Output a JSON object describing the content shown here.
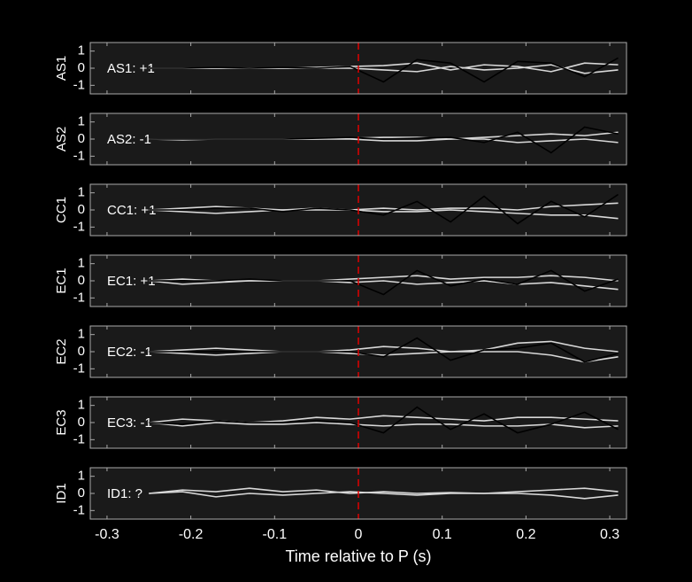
{
  "chart_data": [
    {
      "type": "line",
      "ylabel": "AS1",
      "annotation": "AS1: +1",
      "annotation_color": "#c00000",
      "vline": 0,
      "vline_color": "#e00000",
      "x": [
        -0.25,
        -0.21,
        -0.17,
        -0.13,
        -0.09,
        -0.05,
        -0.01,
        0.03,
        0.07,
        0.11,
        0.15,
        0.19,
        0.23,
        0.27,
        0.31
      ],
      "xlim": [
        -0.32,
        0.32
      ],
      "xticks": [
        -0.3,
        -0.2,
        -0.1,
        0,
        0.1,
        0.2,
        0.3
      ],
      "ylim": [
        -1.5,
        1.5
      ],
      "yticks": [
        -1,
        0,
        1
      ],
      "series": [
        {
          "color": "#d8d8d8",
          "values": [
            0,
            0,
            0,
            0,
            0,
            0.05,
            0.1,
            0.15,
            0.3,
            -0.1,
            0.2,
            0.1,
            -0.2,
            0.3,
            0.2
          ]
        },
        {
          "color": "#d8d8d8",
          "values": [
            0,
            0,
            0,
            0,
            0,
            0,
            0,
            -0.1,
            -0.2,
            0.1,
            -0.1,
            0,
            0.2,
            -0.3,
            -0.1
          ]
        },
        {
          "color": "#000000",
          "values": [
            0,
            0,
            0.05,
            0,
            0.05,
            0,
            0.1,
            -0.8,
            0.5,
            0.3,
            -0.8,
            0.4,
            0.3,
            -0.5,
            0.6
          ]
        }
      ]
    },
    {
      "type": "line",
      "ylabel": "AS2",
      "annotation": "AS2: -1",
      "annotation_color": "#1010b0",
      "vline": 0,
      "vline_color": "#e00000",
      "x": [
        -0.25,
        -0.21,
        -0.17,
        -0.13,
        -0.09,
        -0.05,
        -0.01,
        0.03,
        0.07,
        0.11,
        0.15,
        0.19,
        0.23,
        0.27,
        0.31
      ],
      "xlim": [
        -0.32,
        0.32
      ],
      "xticks": [
        -0.3,
        -0.2,
        -0.1,
        0,
        0.1,
        0.2,
        0.3
      ],
      "ylim": [
        -1.5,
        1.5
      ],
      "yticks": [
        -1,
        0,
        1
      ],
      "series": [
        {
          "color": "#d8d8d8",
          "values": [
            0,
            0,
            0,
            0,
            0,
            0,
            0.05,
            0.1,
            0.1,
            0,
            0.1,
            0.2,
            0.3,
            0.2,
            0.4
          ]
        },
        {
          "color": "#d8d8d8",
          "values": [
            0,
            -0.05,
            0,
            0,
            0,
            0,
            0,
            -0.1,
            -0.1,
            0,
            0,
            -0.2,
            -0.1,
            0,
            -0.2
          ]
        },
        {
          "color": "#000000",
          "values": [
            0,
            0,
            0,
            0,
            0,
            0.05,
            0.1,
            0,
            0.05,
            0.1,
            -0.2,
            0.4,
            -0.8,
            0.7,
            0.3
          ]
        }
      ]
    },
    {
      "type": "line",
      "ylabel": "CC1",
      "annotation": "CC1: +1",
      "annotation_color": "#c00000",
      "vline": 0,
      "vline_color": "#e00000",
      "x": [
        -0.25,
        -0.21,
        -0.17,
        -0.13,
        -0.09,
        -0.05,
        -0.01,
        0.03,
        0.07,
        0.11,
        0.15,
        0.19,
        0.23,
        0.27,
        0.31
      ],
      "xlim": [
        -0.32,
        0.32
      ],
      "xticks": [
        -0.3,
        -0.2,
        -0.1,
        0,
        0.1,
        0.2,
        0.3
      ],
      "ylim": [
        -1.5,
        1.5
      ],
      "yticks": [
        -1,
        0,
        1
      ],
      "series": [
        {
          "color": "#d8d8d8",
          "values": [
            0,
            0.1,
            0.2,
            0.1,
            0,
            0.1,
            0,
            0.1,
            0,
            0.1,
            0.1,
            0,
            0.2,
            0.3,
            0.4
          ]
        },
        {
          "color": "#d8d8d8",
          "values": [
            0,
            -0.1,
            -0.2,
            -0.1,
            0,
            0,
            0,
            -0.1,
            -0.1,
            0,
            -0.1,
            -0.2,
            -0.3,
            -0.3,
            -0.5
          ]
        },
        {
          "color": "#000000",
          "values": [
            0,
            0,
            0.1,
            0.1,
            -0.1,
            0.1,
            0,
            -0.3,
            0.5,
            -0.7,
            0.8,
            -0.8,
            0.5,
            -0.4,
            0.9
          ]
        }
      ]
    },
    {
      "type": "line",
      "ylabel": "EC1",
      "annotation": "EC1: +1",
      "annotation_color": "#c00000",
      "vline": 0,
      "vline_color": "#e00000",
      "x": [
        -0.25,
        -0.21,
        -0.17,
        -0.13,
        -0.09,
        -0.05,
        -0.01,
        0.03,
        0.07,
        0.11,
        0.15,
        0.19,
        0.23,
        0.27,
        0.31
      ],
      "xlim": [
        -0.32,
        0.32
      ],
      "xticks": [
        -0.3,
        -0.2,
        -0.1,
        0,
        0.1,
        0.2,
        0.3
      ],
      "ylim": [
        -1.5,
        1.5
      ],
      "yticks": [
        -1,
        0,
        1
      ],
      "series": [
        {
          "color": "#d8d8d8",
          "values": [
            0,
            0.1,
            0,
            0,
            0,
            0,
            0.1,
            0.2,
            0.3,
            0.1,
            0.2,
            0.2,
            0.3,
            0.2,
            0
          ]
        },
        {
          "color": "#d8d8d8",
          "values": [
            0,
            -0.2,
            -0.1,
            0,
            0,
            0,
            -0.1,
            0,
            -0.2,
            -0.1,
            0,
            -0.2,
            -0.1,
            -0.3,
            -0.5
          ]
        },
        {
          "color": "#000000",
          "values": [
            0,
            0,
            0,
            0.1,
            0,
            0,
            0,
            -0.8,
            0.6,
            -0.3,
            0.1,
            -0.2,
            0.6,
            -0.6,
            0.1
          ]
        }
      ]
    },
    {
      "type": "line",
      "ylabel": "EC2",
      "annotation": "EC2: -1",
      "annotation_color": "#1010b0",
      "vline": 0,
      "vline_color": "#e00000",
      "x": [
        -0.25,
        -0.21,
        -0.17,
        -0.13,
        -0.09,
        -0.05,
        -0.01,
        0.03,
        0.07,
        0.11,
        0.15,
        0.19,
        0.23,
        0.27,
        0.31
      ],
      "xlim": [
        -0.32,
        0.32
      ],
      "xticks": [
        -0.3,
        -0.2,
        -0.1,
        0,
        0.1,
        0.2,
        0.3
      ],
      "ylim": [
        -1.5,
        1.5
      ],
      "yticks": [
        -1,
        0,
        1
      ],
      "series": [
        {
          "color": "#d8d8d8",
          "values": [
            0,
            0.1,
            0.2,
            0.1,
            0,
            0,
            0.1,
            0.3,
            0.2,
            0,
            0.1,
            0.5,
            0.6,
            0.2,
            0
          ]
        },
        {
          "color": "#d8d8d8",
          "values": [
            0,
            -0.1,
            -0.2,
            -0.1,
            0,
            0,
            -0.1,
            -0.2,
            -0.1,
            0,
            0,
            0,
            -0.2,
            -0.6,
            -0.3
          ]
        },
        {
          "color": "#000000",
          "values": [
            0,
            0,
            0,
            0,
            0,
            0,
            0,
            -0.3,
            0.8,
            -0.5,
            0.1,
            0.2,
            0.5,
            -0.6,
            -0.1
          ]
        }
      ]
    },
    {
      "type": "line",
      "ylabel": "EC3",
      "annotation": "EC3: -1",
      "annotation_color": "#1010b0",
      "vline": 0,
      "vline_color": "#e00000",
      "x": [
        -0.25,
        -0.21,
        -0.17,
        -0.13,
        -0.09,
        -0.05,
        -0.01,
        0.03,
        0.07,
        0.11,
        0.15,
        0.19,
        0.23,
        0.27,
        0.31
      ],
      "xlim": [
        -0.32,
        0.32
      ],
      "xticks": [
        -0.3,
        -0.2,
        -0.1,
        0,
        0.1,
        0.2,
        0.3
      ],
      "ylim": [
        -1.5,
        1.5
      ],
      "yticks": [
        -1,
        0,
        1
      ],
      "series": [
        {
          "color": "#d8d8d8",
          "values": [
            0,
            0.2,
            0.1,
            0,
            0.1,
            0.3,
            0.2,
            0.4,
            0.3,
            0.2,
            0.1,
            0.3,
            0.3,
            0.2,
            0.1
          ]
        },
        {
          "color": "#d8d8d8",
          "values": [
            0,
            -0.2,
            0,
            -0.1,
            -0.1,
            0,
            -0.1,
            -0.2,
            -0.1,
            -0.1,
            -0.2,
            -0.2,
            -0.1,
            -0.3,
            -0.2
          ]
        },
        {
          "color": "#000000",
          "values": [
            0,
            -0.1,
            0.1,
            0,
            0,
            0.1,
            0,
            -0.6,
            0.9,
            -0.4,
            0.5,
            -0.6,
            -0.1,
            0.6,
            -0.4
          ]
        }
      ]
    },
    {
      "type": "line",
      "ylabel": "ID1",
      "annotation": "ID1: ?",
      "annotation_color": "#909090",
      "vline": 0,
      "vline_color": "#e00000",
      "xlabel": "Time relative to P (s)",
      "x": [
        -0.25,
        -0.21,
        -0.17,
        -0.13,
        -0.09,
        -0.05,
        -0.01,
        0.03,
        0.07,
        0.11,
        0.15,
        0.19,
        0.23,
        0.27,
        0.31
      ],
      "xlim": [
        -0.32,
        0.32
      ],
      "xticks": [
        -0.3,
        -0.2,
        -0.1,
        0,
        0.1,
        0.2,
        0.3
      ],
      "ylim": [
        -1.5,
        1.5
      ],
      "yticks": [
        -1,
        0,
        1
      ],
      "series": [
        {
          "color": "#d8d8d8",
          "values": [
            0,
            0.2,
            0.1,
            0.3,
            0.1,
            0.2,
            0,
            0.1,
            0,
            0.05,
            0,
            0.1,
            0.2,
            0.3,
            0.1
          ]
        },
        {
          "color": "#d8d8d8",
          "values": [
            0,
            0.1,
            -0.2,
            0,
            -0.1,
            0,
            0.1,
            0,
            -0.1,
            0,
            0,
            0,
            -0.1,
            -0.3,
            -0.1
          ]
        }
      ]
    }
  ]
}
